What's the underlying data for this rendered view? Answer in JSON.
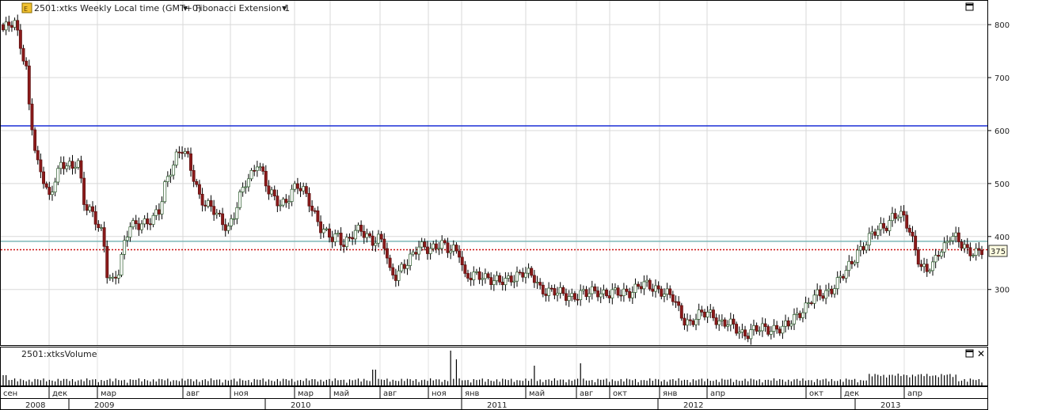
{
  "header": {
    "symbol_label": "2501:xtks Weekly Local time (GMT+0)",
    "indicator_label": "Fibonacci Extension 1"
  },
  "volume_panel": {
    "label": "2501:xtksVolume"
  },
  "price_tag": "375",
  "chart_data": {
    "type": "candlestick",
    "title": "",
    "ylim": [
      195,
      845
    ],
    "yticks": [
      300,
      400,
      500,
      600,
      700,
      800
    ],
    "grid": true,
    "levels": [
      {
        "value": 609,
        "color": "#1a2fd6",
        "style": "solid"
      },
      {
        "value": 391,
        "color": "#7fb8b8",
        "style": "solid"
      },
      {
        "value": 375,
        "color": "#cc1111",
        "style": "dotted"
      }
    ],
    "months": [
      "сен",
      "дек",
      "мар",
      "авг",
      "ноя",
      "мар",
      "май",
      "авг",
      "ноя",
      "янв",
      "май",
      "авг",
      "окт",
      "янв",
      "апр",
      "окт",
      "дек",
      "апр"
    ],
    "years": [
      "2008",
      "2009",
      "2010",
      "2011",
      "2012",
      "2013"
    ],
    "price_anchors": [
      [
        0,
        790
      ],
      [
        4,
        800
      ],
      [
        6,
        765
      ],
      [
        8,
        720
      ],
      [
        9,
        650
      ],
      [
        10,
        610
      ],
      [
        11,
        560
      ],
      [
        12,
        530
      ],
      [
        14,
        505
      ],
      [
        16,
        475
      ],
      [
        18,
        515
      ],
      [
        20,
        535
      ],
      [
        22,
        530
      ],
      [
        24,
        525
      ],
      [
        25,
        540
      ],
      [
        26,
        545
      ],
      [
        28,
        470
      ],
      [
        30,
        450
      ],
      [
        32,
        425
      ],
      [
        34,
        405
      ],
      [
        35,
        380
      ],
      [
        36,
        335
      ],
      [
        38,
        320
      ],
      [
        40,
        335
      ],
      [
        42,
        380
      ],
      [
        44,
        420
      ],
      [
        46,
        425
      ],
      [
        48,
        430
      ],
      [
        50,
        425
      ],
      [
        52,
        430
      ],
      [
        54,
        445
      ],
      [
        56,
        500
      ],
      [
        58,
        530
      ],
      [
        60,
        550
      ],
      [
        62,
        560
      ],
      [
        64,
        545
      ],
      [
        66,
        515
      ],
      [
        68,
        480
      ],
      [
        70,
        460
      ],
      [
        72,
        450
      ],
      [
        74,
        440
      ],
      [
        76,
        430
      ],
      [
        78,
        420
      ],
      [
        80,
        440
      ],
      [
        82,
        470
      ],
      [
        84,
        500
      ],
      [
        86,
        520
      ],
      [
        88,
        545
      ],
      [
        90,
        515
      ],
      [
        92,
        480
      ],
      [
        94,
        470
      ],
      [
        96,
        465
      ],
      [
        98,
        470
      ],
      [
        100,
        485
      ],
      [
        102,
        490
      ],
      [
        104,
        485
      ],
      [
        106,
        470
      ],
      [
        108,
        445
      ],
      [
        110,
        415
      ],
      [
        112,
        400
      ],
      [
        114,
        395
      ],
      [
        116,
        405
      ],
      [
        118,
        390
      ],
      [
        120,
        395
      ],
      [
        122,
        405
      ],
      [
        124,
        410
      ],
      [
        126,
        405
      ],
      [
        128,
        395
      ],
      [
        130,
        395
      ],
      [
        132,
        380
      ],
      [
        134,
        330
      ],
      [
        136,
        330
      ],
      [
        138,
        345
      ],
      [
        140,
        350
      ],
      [
        142,
        360
      ],
      [
        144,
        380
      ],
      [
        146,
        385
      ],
      [
        148,
        380
      ],
      [
        150,
        380
      ],
      [
        152,
        380
      ],
      [
        154,
        375
      ],
      [
        156,
        380
      ],
      [
        158,
        375
      ],
      [
        160,
        320
      ],
      [
        162,
        320
      ],
      [
        164,
        325
      ],
      [
        166,
        330
      ],
      [
        168,
        325
      ],
      [
        170,
        315
      ],
      [
        172,
        310
      ],
      [
        174,
        315
      ],
      [
        176,
        325
      ],
      [
        178,
        330
      ],
      [
        180,
        330
      ],
      [
        182,
        325
      ],
      [
        184,
        320
      ],
      [
        186,
        305
      ],
      [
        188,
        300
      ],
      [
        190,
        295
      ],
      [
        192,
        290
      ],
      [
        194,
        290
      ],
      [
        196,
        290
      ],
      [
        198,
        290
      ],
      [
        200,
        290
      ],
      [
        202,
        288
      ],
      [
        204,
        295
      ],
      [
        206,
        300
      ],
      [
        208,
        295
      ],
      [
        210,
        290
      ],
      [
        212,
        290
      ],
      [
        214,
        292
      ],
      [
        216,
        298
      ],
      [
        218,
        300
      ],
      [
        220,
        305
      ],
      [
        222,
        305
      ],
      [
        224,
        305
      ],
      [
        226,
        305
      ],
      [
        228,
        300
      ],
      [
        230,
        290
      ],
      [
        232,
        280
      ],
      [
        234,
        260
      ],
      [
        236,
        245
      ],
      [
        238,
        240
      ],
      [
        240,
        245
      ],
      [
        242,
        250
      ],
      [
        244,
        255
      ],
      [
        246,
        255
      ],
      [
        248,
        240
      ],
      [
        250,
        235
      ],
      [
        252,
        230
      ],
      [
        254,
        225
      ],
      [
        256,
        220
      ],
      [
        258,
        220
      ],
      [
        260,
        222
      ],
      [
        262,
        222
      ],
      [
        264,
        225
      ],
      [
        266,
        228
      ],
      [
        268,
        230
      ],
      [
        270,
        225
      ],
      [
        272,
        230
      ],
      [
        274,
        245
      ],
      [
        276,
        260
      ],
      [
        278,
        270
      ],
      [
        280,
        280
      ],
      [
        282,
        285
      ],
      [
        284,
        290
      ],
      [
        286,
        300
      ],
      [
        288,
        310
      ],
      [
        290,
        320
      ],
      [
        292,
        330
      ],
      [
        294,
        350
      ],
      [
        296,
        375
      ],
      [
        298,
        385
      ],
      [
        300,
        395
      ],
      [
        302,
        405
      ],
      [
        304,
        415
      ],
      [
        306,
        425
      ],
      [
        308,
        440
      ],
      [
        310,
        440
      ],
      [
        312,
        430
      ],
      [
        314,
        410
      ],
      [
        316,
        380
      ],
      [
        318,
        345
      ],
      [
        320,
        335
      ],
      [
        322,
        340
      ],
      [
        324,
        370
      ],
      [
        326,
        385
      ],
      [
        328,
        405
      ],
      [
        330,
        395
      ],
      [
        332,
        380
      ],
      [
        334,
        372
      ],
      [
        336,
        375
      ],
      [
        338,
        375
      ],
      [
        339,
        375
      ]
    ],
    "volume_scale": 1.0
  }
}
